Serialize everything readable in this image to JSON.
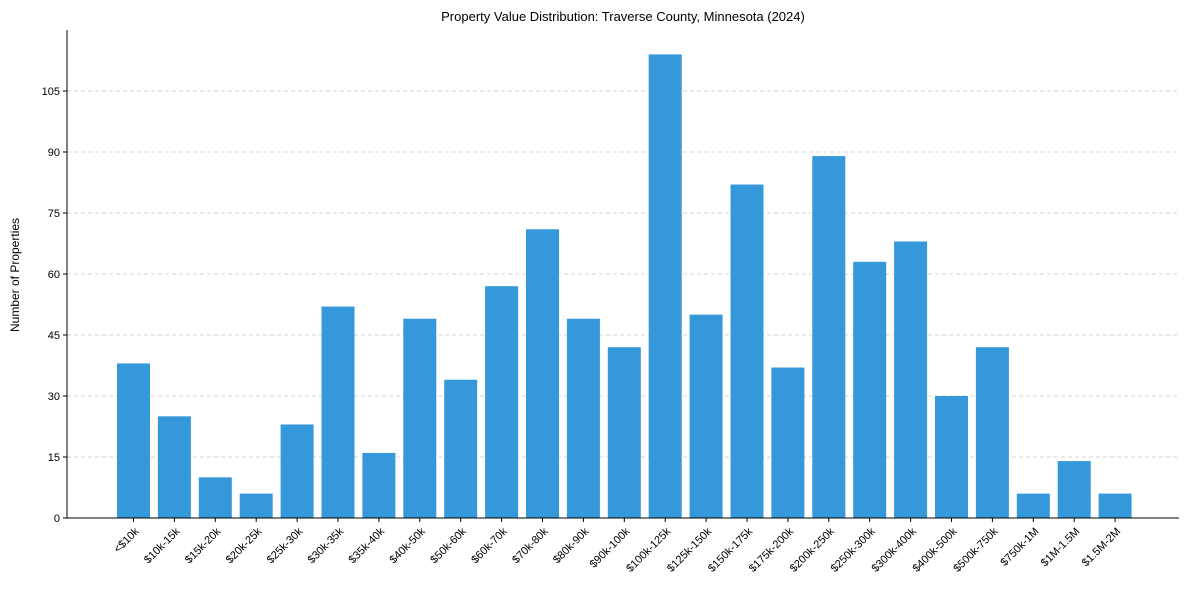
{
  "chart_data": {
    "type": "bar",
    "title": "Property Value Distribution: Traverse County, Minnesota (2024)",
    "xlabel": "",
    "ylabel": "Number of Properties",
    "ylim": [
      0,
      120
    ],
    "yticks": [
      0,
      15,
      30,
      45,
      60,
      75,
      90,
      105
    ],
    "grid": "y-dashed",
    "bar_color": "#3498db",
    "categories": [
      "<$10k",
      "$10k-15k",
      "$15k-20k",
      "$20k-25k",
      "$25k-30k",
      "$30k-35k",
      "$35k-40k",
      "$40k-50k",
      "$50k-60k",
      "$60k-70k",
      "$70k-80k",
      "$80k-90k",
      "$90k-100k",
      "$100k-125k",
      "$125k-150k",
      "$150k-175k",
      "$175k-200k",
      "$200k-250k",
      "$250k-300k",
      "$300k-400k",
      "$400k-500k",
      "$500k-750k",
      "$750k-1M",
      "$1M-1.5M",
      "$1.5M-2M"
    ],
    "values": [
      38,
      25,
      10,
      6,
      23,
      52,
      16,
      49,
      34,
      57,
      71,
      49,
      42,
      114,
      50,
      82,
      37,
      89,
      63,
      68,
      30,
      42,
      6,
      14,
      6
    ]
  }
}
